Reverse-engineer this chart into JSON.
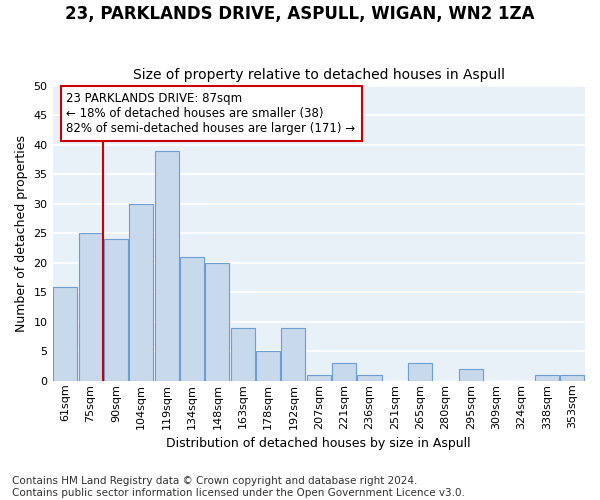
{
  "title": "23, PARKLANDS DRIVE, ASPULL, WIGAN, WN2 1ZA",
  "subtitle": "Size of property relative to detached houses in Aspull",
  "xlabel": "Distribution of detached houses by size in Aspull",
  "ylabel": "Number of detached properties",
  "bin_labels": [
    "61sqm",
    "75sqm",
    "90sqm",
    "104sqm",
    "119sqm",
    "134sqm",
    "148sqm",
    "163sqm",
    "178sqm",
    "192sqm",
    "207sqm",
    "221sqm",
    "236sqm",
    "251sqm",
    "265sqm",
    "280sqm",
    "295sqm",
    "309sqm",
    "324sqm",
    "338sqm",
    "353sqm"
  ],
  "values": [
    16,
    25,
    24,
    30,
    39,
    21,
    20,
    9,
    5,
    9,
    1,
    3,
    1,
    0,
    3,
    0,
    2,
    0,
    0,
    1,
    1
  ],
  "bar_facecolor": "#c9d9ec",
  "bar_edgecolor": "#6b9fd4",
  "background_color": "#e8f0f8",
  "grid_color": "#ffffff",
  "vline_bin": 2,
  "vline_color": "#cc0000",
  "annotation_text": "23 PARKLANDS DRIVE: 87sqm\n← 18% of detached houses are smaller (38)\n82% of semi-detached houses are larger (171) →",
  "annotation_box_color": "#ffffff",
  "annotation_box_edgecolor": "#cc0000",
  "ylim": [
    0,
    50
  ],
  "yticks": [
    0,
    5,
    10,
    15,
    20,
    25,
    30,
    35,
    40,
    45,
    50
  ],
  "footer_line1": "Contains HM Land Registry data © Crown copyright and database right 2024.",
  "footer_line2": "Contains public sector information licensed under the Open Government Licence v3.0.",
  "title_fontsize": 12,
  "subtitle_fontsize": 10,
  "axis_label_fontsize": 9,
  "tick_fontsize": 8,
  "annotation_fontsize": 8.5,
  "footer_fontsize": 7.5
}
